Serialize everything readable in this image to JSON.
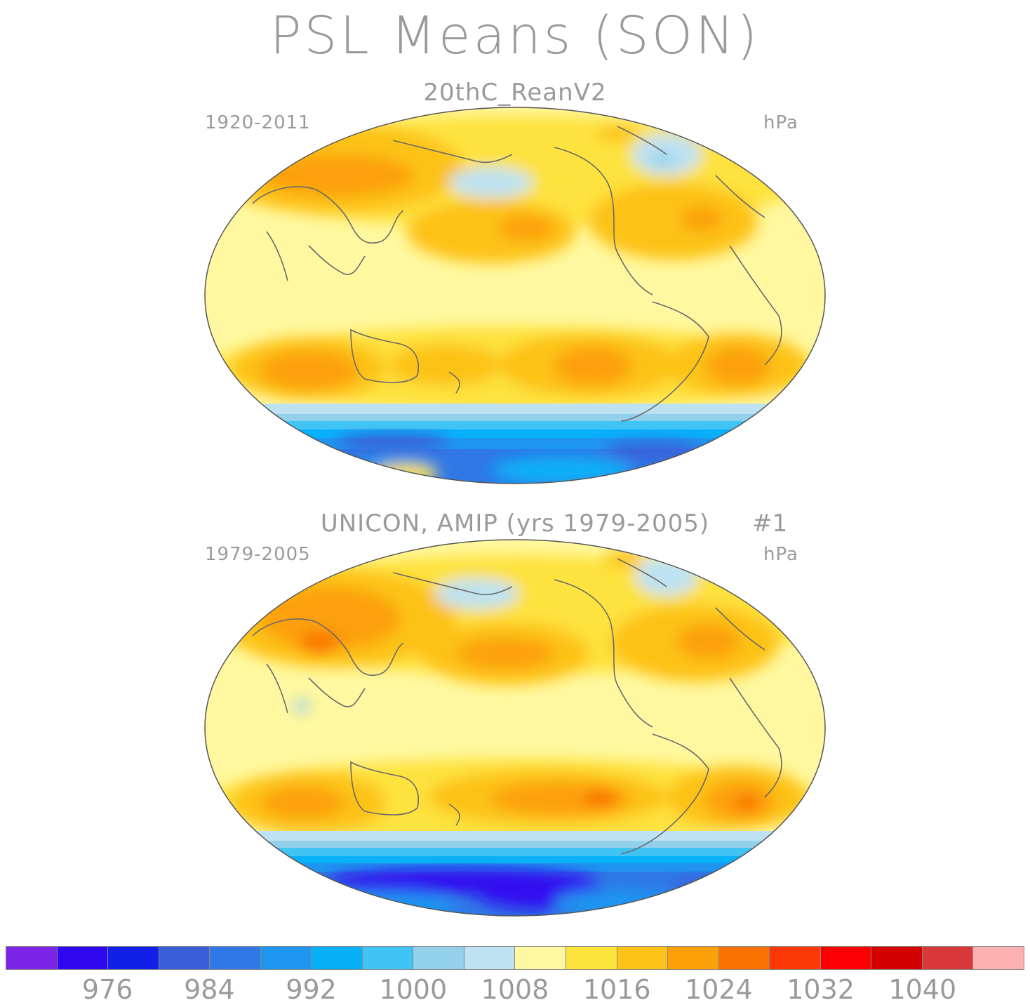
{
  "title": "PSL Means (SON)",
  "panels": [
    {
      "subtitle": "20thC_ReanV2",
      "run_tag": "",
      "period": "1920-2011",
      "units": "hPa"
    },
    {
      "subtitle": "UNICON, AMIP (yrs 1979-2005)",
      "run_tag": "#1",
      "period": "1979-2005",
      "units": "hPa"
    }
  ],
  "colorbar": {
    "colors": [
      "#7b24e6",
      "#3008f0",
      "#1020e8",
      "#3a5ed8",
      "#2f78e6",
      "#1e96f0",
      "#08b0f8",
      "#40c4f4",
      "#92d0ec",
      "#bee2f2",
      "#fff8a0",
      "#fee23c",
      "#fdc218",
      "#fca00a",
      "#fb7204",
      "#fb3806",
      "#fa0000",
      "#d20000",
      "#d83838",
      "#fcb0b0"
    ],
    "labels": [
      "976",
      "984",
      "992",
      "1000",
      "1008",
      "1016",
      "1024",
      "1032",
      "1040"
    ]
  }
}
